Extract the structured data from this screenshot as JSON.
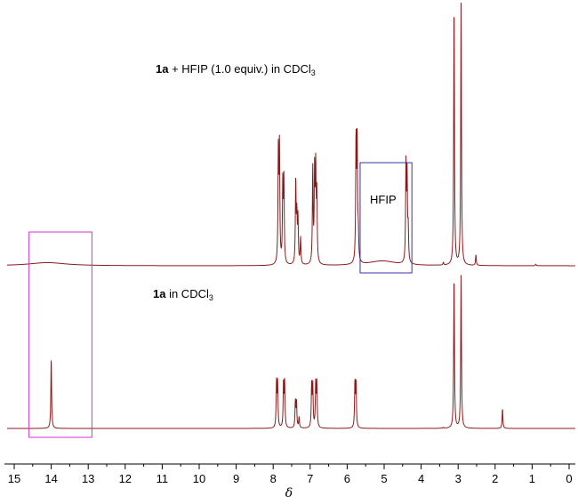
{
  "chart_data": {
    "type": "line",
    "xlabel": "δ",
    "xlim": [
      15.2,
      -0.2
    ],
    "x_reversed": true,
    "ticks": [
      "15",
      "14",
      "13",
      "12",
      "11",
      "10",
      "9",
      "8",
      "7",
      "6",
      "5",
      "4",
      "3",
      "2",
      "1",
      "0"
    ],
    "colors": {
      "trace": "#8B1A1A",
      "highlight_box_1": "#CC33CC",
      "highlight_box_2": "#3333AA"
    },
    "series": [
      {
        "label_bold": "1a",
        "label_rest": " + HFIP (1.0 equiv.) in CDCl",
        "label_sub": "3",
        "annotation": "HFIP",
        "peaks": [
          {
            "x": 7.86,
            "y": 0.42
          },
          {
            "x": 7.83,
            "y": 0.43
          },
          {
            "x": 7.74,
            "y": 0.3
          },
          {
            "x": 7.71,
            "y": 0.31
          },
          {
            "x": 7.39,
            "y": 0.31
          },
          {
            "x": 7.36,
            "y": 0.17
          },
          {
            "x": 7.33,
            "y": 0.17
          },
          {
            "x": 7.26,
            "y": 0.1
          },
          {
            "x": 6.93,
            "y": 0.36
          },
          {
            "x": 6.88,
            "y": 0.34
          },
          {
            "x": 6.85,
            "y": 0.34
          },
          {
            "x": 6.82,
            "y": 0.25
          },
          {
            "x": 5.76,
            "y": 0.46
          },
          {
            "x": 5.73,
            "y": 0.46
          },
          {
            "x": 5.7,
            "y": 0.1
          },
          {
            "x": 4.41,
            "y": 0.37
          },
          {
            "x": 4.38,
            "y": 0.32
          },
          {
            "x": 4.35,
            "y": 0.12
          },
          {
            "x": 3.11,
            "y": 1.0
          },
          {
            "x": 2.92,
            "y": 1.0
          },
          {
            "x": 2.52,
            "y": 0.04
          },
          {
            "x": 3.4,
            "y": 0.01
          },
          {
            "x": 0.9,
            "y": 0.006
          }
        ],
        "broad": [
          {
            "x": 14.1,
            "y": 0.012,
            "w": 0.6
          },
          {
            "x": 5.05,
            "y": 0.018,
            "w": 0.45
          }
        ]
      },
      {
        "label_bold": "1a",
        "label_rest": " in CDCl",
        "label_sub": "3",
        "peaks": [
          {
            "x": 14.0,
            "y": 0.46
          },
          {
            "x": 7.91,
            "y": 0.29
          },
          {
            "x": 7.88,
            "y": 0.29
          },
          {
            "x": 7.72,
            "y": 0.29
          },
          {
            "x": 7.69,
            "y": 0.29
          },
          {
            "x": 7.4,
            "y": 0.17
          },
          {
            "x": 7.37,
            "y": 0.17
          },
          {
            "x": 7.3,
            "y": 0.07
          },
          {
            "x": 6.96,
            "y": 0.27
          },
          {
            "x": 6.93,
            "y": 0.27
          },
          {
            "x": 6.85,
            "y": 0.28
          },
          {
            "x": 6.82,
            "y": 0.28
          },
          {
            "x": 5.79,
            "y": 0.29
          },
          {
            "x": 5.76,
            "y": 0.29
          },
          {
            "x": 3.11,
            "y": 1.0
          },
          {
            "x": 2.92,
            "y": 1.0
          },
          {
            "x": 1.8,
            "y": 0.13
          },
          {
            "x": 3.4,
            "y": 0.006
          }
        ],
        "broad": []
      }
    ],
    "highlight_boxes": [
      {
        "name": "box-enol-oh",
        "x_from": 14.6,
        "x_to": 12.9,
        "color": "highlight_box_1"
      },
      {
        "name": "box-hfip",
        "x_from": 5.65,
        "x_to": 4.25,
        "color": "highlight_box_2"
      }
    ]
  }
}
